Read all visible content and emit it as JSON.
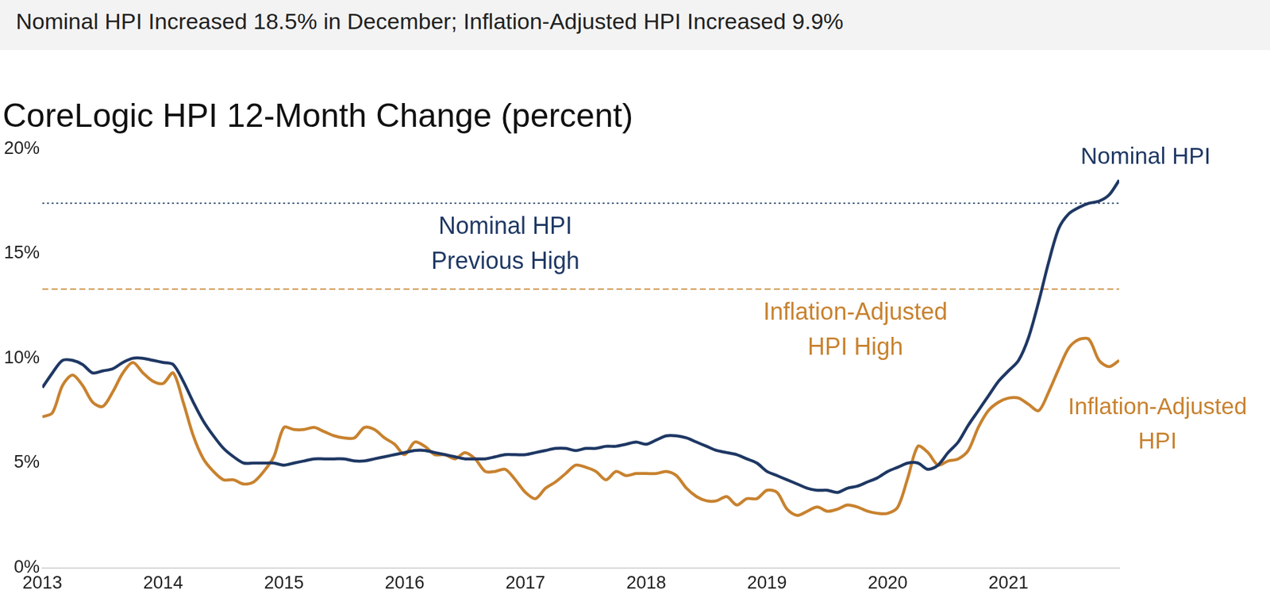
{
  "chart_data": {
    "type": "line",
    "headline": "Nominal HPI Increased 18.5% in December; Inflation-Adjusted HPI Increased 9.9%",
    "title": "CoreLogic HPI 12-Month Change (percent)",
    "categories": [
      "2013",
      null,
      null,
      null,
      null,
      null,
      null,
      null,
      null,
      null,
      null,
      null,
      "2014",
      null,
      null,
      null,
      null,
      null,
      null,
      null,
      null,
      null,
      null,
      null,
      "2015",
      null,
      null,
      null,
      null,
      null,
      null,
      null,
      null,
      null,
      null,
      null,
      "2016",
      null,
      null,
      null,
      null,
      null,
      null,
      null,
      null,
      null,
      null,
      null,
      "2017",
      null,
      null,
      null,
      null,
      null,
      null,
      null,
      null,
      null,
      null,
      null,
      "2018",
      null,
      null,
      null,
      null,
      null,
      null,
      null,
      null,
      null,
      null,
      null,
      "2019",
      null,
      null,
      null,
      null,
      null,
      null,
      null,
      null,
      null,
      null,
      null,
      "2020",
      null,
      null,
      null,
      null,
      null,
      null,
      null,
      null,
      null,
      null,
      null,
      "2021",
      null,
      null,
      null,
      null,
      null,
      null,
      null,
      null,
      null,
      null,
      null
    ],
    "series": [
      {
        "name": "Nominal HPI",
        "color": "#1f3864",
        "line_style": "solid",
        "values": [
          8.6,
          9.3,
          9.9,
          9.9,
          9.7,
          9.3,
          9.4,
          9.5,
          9.8,
          10.0,
          10.0,
          9.9,
          9.8,
          9.7,
          8.9,
          7.9,
          7.0,
          6.3,
          5.7,
          5.3,
          5.0,
          5.0,
          5.0,
          5.0,
          4.9,
          5.0,
          5.1,
          5.2,
          5.2,
          5.2,
          5.2,
          5.1,
          5.1,
          5.2,
          5.3,
          5.4,
          5.5,
          5.6,
          5.6,
          5.5,
          5.4,
          5.3,
          5.2,
          5.2,
          5.2,
          5.3,
          5.4,
          5.4,
          5.4,
          5.5,
          5.6,
          5.7,
          5.7,
          5.6,
          5.7,
          5.7,
          5.8,
          5.8,
          5.9,
          6.0,
          5.9,
          6.1,
          6.3,
          6.3,
          6.2,
          6.0,
          5.8,
          5.6,
          5.5,
          5.4,
          5.2,
          5.0,
          4.6,
          4.4,
          4.2,
          4.0,
          3.8,
          3.7,
          3.7,
          3.6,
          3.8,
          3.9,
          4.1,
          4.3,
          4.6,
          4.8,
          5.0,
          5.0,
          4.7,
          4.9,
          5.5,
          6.0,
          6.8,
          7.5,
          8.2,
          8.9,
          9.4,
          9.9,
          11.0,
          12.7,
          14.6,
          16.2,
          16.9,
          17.2,
          17.4,
          17.5,
          17.8,
          18.5
        ]
      },
      {
        "name": "Inflation-Adjusted HPI",
        "color": "#c8822f",
        "line_style": "solid",
        "values": [
          7.2,
          7.4,
          8.7,
          9.2,
          8.7,
          7.9,
          7.7,
          8.4,
          9.3,
          9.8,
          9.3,
          8.9,
          8.8,
          9.3,
          7.9,
          6.3,
          5.2,
          4.6,
          4.2,
          4.2,
          4.0,
          4.1,
          4.6,
          5.3,
          6.7,
          6.6,
          6.6,
          6.7,
          6.5,
          6.3,
          6.2,
          6.2,
          6.7,
          6.6,
          6.2,
          5.9,
          5.4,
          6.0,
          5.8,
          5.4,
          5.4,
          5.2,
          5.5,
          5.2,
          4.6,
          4.6,
          4.7,
          4.2,
          3.6,
          3.3,
          3.8,
          4.1,
          4.5,
          4.9,
          4.8,
          4.6,
          4.2,
          4.6,
          4.4,
          4.5,
          4.5,
          4.5,
          4.6,
          4.4,
          3.8,
          3.4,
          3.2,
          3.2,
          3.4,
          3.0,
          3.3,
          3.3,
          3.7,
          3.6,
          2.8,
          2.5,
          2.7,
          2.9,
          2.7,
          2.8,
          3.0,
          2.9,
          2.7,
          2.6,
          2.6,
          2.9,
          4.3,
          5.8,
          5.5,
          4.9,
          5.1,
          5.2,
          5.6,
          6.7,
          7.5,
          7.9,
          8.1,
          8.1,
          7.8,
          7.5,
          8.4,
          9.5,
          10.5,
          10.9,
          10.9,
          9.9,
          9.6,
          9.9
        ]
      }
    ],
    "annotations": [
      {
        "text": [
          "Nominal HPI",
          "Previous High"
        ],
        "value": 17.4,
        "color": "#1f3864",
        "line_style": "dotted"
      },
      {
        "text": [
          "Inflation-Adjusted",
          "HPI High"
        ],
        "value": 13.3,
        "color": "#c8822f",
        "line_style": "dashed"
      }
    ],
    "ylim": [
      0,
      20
    ],
    "yticks": [
      {
        "value": 0,
        "label": "0%"
      },
      {
        "value": 5,
        "label": "5%"
      },
      {
        "value": 10,
        "label": "10%"
      },
      {
        "value": 15,
        "label": "15%"
      },
      {
        "value": 20,
        "label": "20%"
      }
    ],
    "grid": false,
    "legend": "none"
  }
}
